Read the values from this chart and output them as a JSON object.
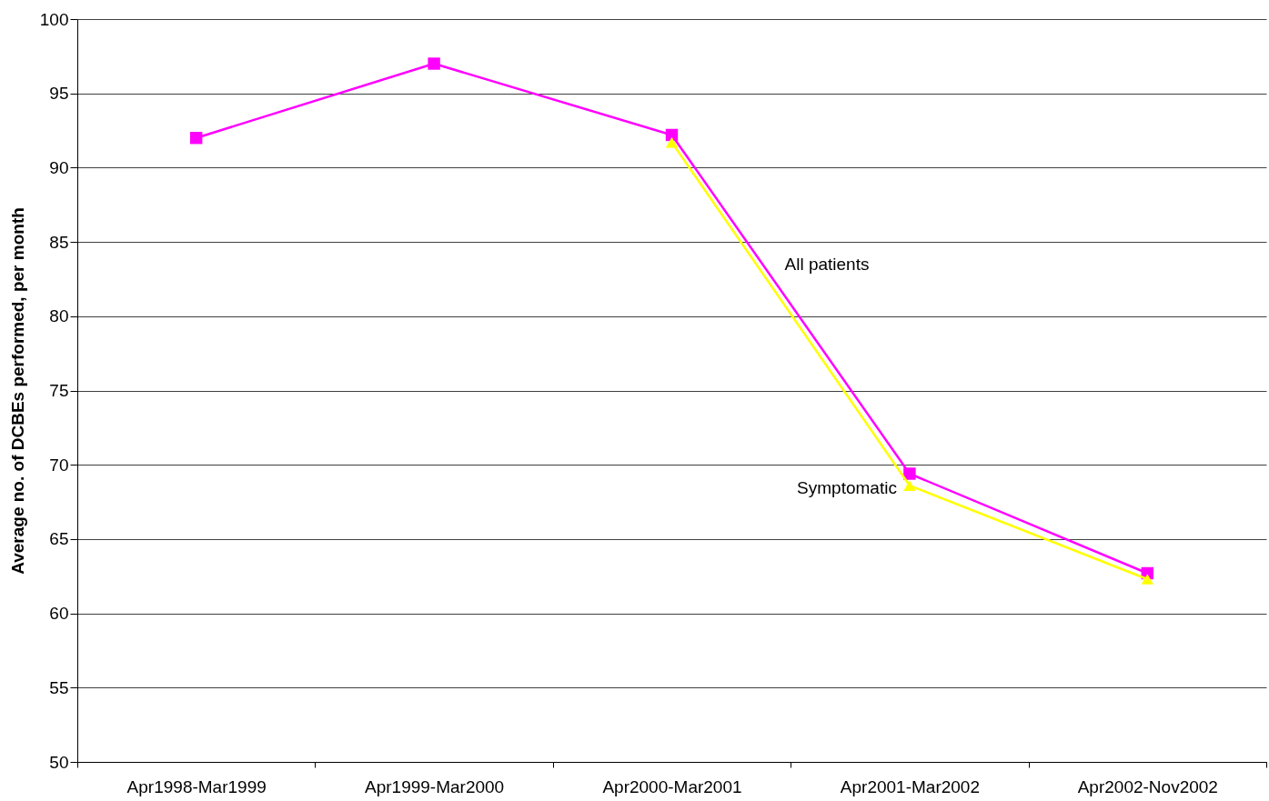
{
  "chart_data": {
    "type": "line",
    "ylabel": "Average no. of DCBEs performed, per month",
    "categories": [
      "Apr1998-Mar1999",
      "Apr1999-Mar2000",
      "Apr2000-Mar2001",
      "Apr2001-Mar2002",
      "Apr2002-Nov2002"
    ],
    "series": [
      {
        "name": "All patients",
        "color": "#ff00ff",
        "marker": "square",
        "values": [
          92,
          97,
          92.2,
          69.4,
          62.7
        ]
      },
      {
        "name": "Symptomatic",
        "color": "#ffff00",
        "marker": "triangle",
        "values": [
          null,
          null,
          91.7,
          68.6,
          62.3
        ]
      }
    ],
    "ylim": [
      50,
      100
    ],
    "yticks": [
      50,
      55,
      60,
      65,
      70,
      75,
      80,
      85,
      90,
      95,
      100
    ],
    "grid": "y"
  }
}
